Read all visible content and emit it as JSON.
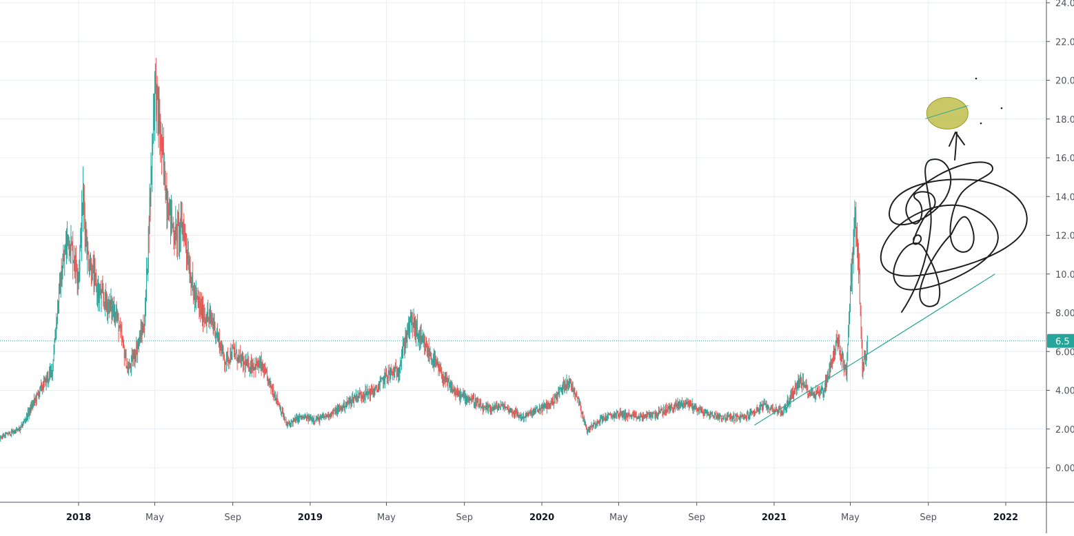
{
  "chart_data": {
    "type": "candlestick",
    "symbol_context": "price chart with drawings",
    "x_range": [
      "2017-04-01",
      "2022-03-01"
    ],
    "y_range": [
      -1.8,
      24.2
    ],
    "grid": true,
    "legend": "none",
    "y_tick_labels": [
      "24.0",
      "22.0",
      "20.0",
      "18.0",
      "16.0",
      "14.0",
      "12.0",
      "10.0",
      "8.00",
      "6.00",
      "4.00",
      "2.00",
      "0.00"
    ],
    "y_tick_values": [
      24,
      22,
      20,
      18,
      16,
      14,
      12,
      10,
      8,
      6,
      4,
      2,
      0
    ],
    "x_ticks": [
      {
        "label": "2018",
        "date": "2018-01-01",
        "year": true
      },
      {
        "label": "May",
        "date": "2018-05-01",
        "year": false
      },
      {
        "label": "Sep",
        "date": "2018-09-01",
        "year": false
      },
      {
        "label": "2019",
        "date": "2019-01-01",
        "year": true
      },
      {
        "label": "May",
        "date": "2019-05-01",
        "year": false
      },
      {
        "label": "Sep",
        "date": "2019-09-01",
        "year": false
      },
      {
        "label": "2020",
        "date": "2020-01-01",
        "year": true
      },
      {
        "label": "May",
        "date": "2020-05-01",
        "year": false
      },
      {
        "label": "Sep",
        "date": "2020-09-01",
        "year": false
      },
      {
        "label": "2021",
        "date": "2021-01-01",
        "year": true
      },
      {
        "label": "May",
        "date": "2021-05-01",
        "year": false
      },
      {
        "label": "Sep",
        "date": "2021-09-01",
        "year": false
      },
      {
        "label": "2022",
        "date": "2022-01-01",
        "year": true
      }
    ],
    "last_price": 6.55,
    "last_price_label": "6.5",
    "close_path": [
      [
        "2017-04-01",
        1.1
      ],
      [
        "2017-05-01",
        0.7
      ],
      [
        "2017-06-01",
        0.55
      ],
      [
        "2017-07-01",
        0.5
      ],
      [
        "2017-08-01",
        1.0
      ],
      [
        "2017-09-01",
        1.6
      ],
      [
        "2017-10-01",
        2.0
      ],
      [
        "2017-11-01",
        4.0
      ],
      [
        "2017-11-20",
        5.0
      ],
      [
        "2017-12-01",
        9.0
      ],
      [
        "2017-12-15",
        12.0
      ],
      [
        "2018-01-01",
        10.0
      ],
      [
        "2018-01-08",
        14.0
      ],
      [
        "2018-01-15",
        11.0
      ],
      [
        "2018-02-01",
        9.0
      ],
      [
        "2018-02-15",
        8.5
      ],
      [
        "2018-03-01",
        8.0
      ],
      [
        "2018-03-20",
        5.0
      ],
      [
        "2018-04-01",
        6.0
      ],
      [
        "2018-04-15",
        7.5
      ],
      [
        "2018-04-25",
        15.0
      ],
      [
        "2018-05-01",
        20.0
      ],
      [
        "2018-05-10",
        17.0
      ],
      [
        "2018-05-20",
        14.0
      ],
      [
        "2018-06-01",
        12.0
      ],
      [
        "2018-06-15",
        12.5
      ],
      [
        "2018-07-01",
        9.0
      ],
      [
        "2018-07-15",
        8.0
      ],
      [
        "2018-08-01",
        7.5
      ],
      [
        "2018-08-20",
        5.5
      ],
      [
        "2018-09-01",
        6.0
      ],
      [
        "2018-09-20",
        5.3
      ],
      [
        "2018-10-15",
        5.3
      ],
      [
        "2018-11-10",
        3.5
      ],
      [
        "2018-11-25",
        2.2
      ],
      [
        "2018-12-15",
        2.6
      ],
      [
        "2019-01-15",
        2.5
      ],
      [
        "2019-02-15",
        3.0
      ],
      [
        "2019-03-15",
        3.7
      ],
      [
        "2019-04-15",
        4.0
      ],
      [
        "2019-05-01",
        4.8
      ],
      [
        "2019-05-20",
        5.0
      ],
      [
        "2019-06-01",
        6.8
      ],
      [
        "2019-06-10",
        7.6
      ],
      [
        "2019-06-25",
        6.5
      ],
      [
        "2019-07-15",
        5.5
      ],
      [
        "2019-08-01",
        4.5
      ],
      [
        "2019-08-20",
        3.8
      ],
      [
        "2019-09-15",
        3.5
      ],
      [
        "2019-10-01",
        3.0
      ],
      [
        "2019-11-01",
        3.2
      ],
      [
        "2019-12-01",
        2.6
      ],
      [
        "2020-01-15",
        3.3
      ],
      [
        "2020-02-10",
        4.5
      ],
      [
        "2020-02-25",
        3.8
      ],
      [
        "2020-03-12",
        1.9
      ],
      [
        "2020-04-01",
        2.5
      ],
      [
        "2020-05-01",
        2.8
      ],
      [
        "2020-06-01",
        2.6
      ],
      [
        "2020-07-01",
        2.8
      ],
      [
        "2020-08-15",
        3.4
      ],
      [
        "2020-09-15",
        2.8
      ],
      [
        "2020-10-15",
        2.6
      ],
      [
        "2020-11-15",
        2.6
      ],
      [
        "2020-12-15",
        3.2
      ],
      [
        "2021-01-15",
        2.9
      ],
      [
        "2021-02-10",
        4.5
      ],
      [
        "2021-03-01",
        3.8
      ],
      [
        "2021-03-20",
        4.0
      ],
      [
        "2021-04-10",
        6.5
      ],
      [
        "2021-04-25",
        5.0
      ],
      [
        "2021-05-01",
        9.0
      ],
      [
        "2021-05-08",
        13.0
      ],
      [
        "2021-05-15",
        10.0
      ],
      [
        "2021-05-20",
        5.0
      ],
      [
        "2021-05-28",
        6.5
      ]
    ],
    "drawings": {
      "trend_line": {
        "from": [
          "2020-12-01",
          2.2
        ],
        "to": [
          "2021-12-15",
          10.0
        ],
        "color": "#26a69a"
      },
      "target_ellipse": {
        "center": [
          "2021-10-01",
          18.3
        ],
        "color": "#b5b533"
      }
    },
    "colors": {
      "up": "#26a69a",
      "down": "#ef5350",
      "grid": "#e9eef4",
      "price_line": "#26a69a",
      "axis_text": "#50535e",
      "scribble": "#1f1f1f"
    }
  }
}
